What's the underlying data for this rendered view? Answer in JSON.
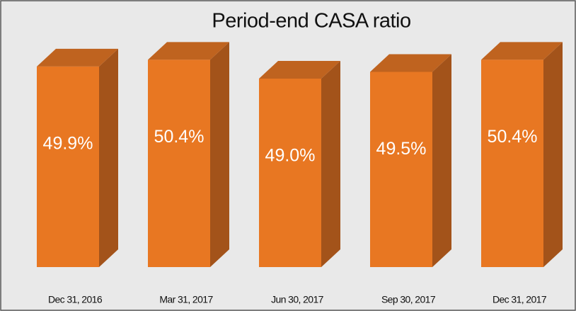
{
  "chart_data": {
    "type": "bar3d",
    "title": "Period-end CASA ratio",
    "categories": [
      "Dec 31, 2016",
      "Mar 31, 2017",
      "Jun 30, 2017",
      "Sep 30, 2017",
      "Dec 31, 2017"
    ],
    "values": [
      49.9,
      50.4,
      49.0,
      49.5,
      50.4
    ],
    "value_labels": [
      "49.9%",
      "50.4%",
      "49.0%",
      "49.5%",
      "50.4%"
    ],
    "color": "#e87722",
    "ylim": [
      35,
      51
    ]
  }
}
